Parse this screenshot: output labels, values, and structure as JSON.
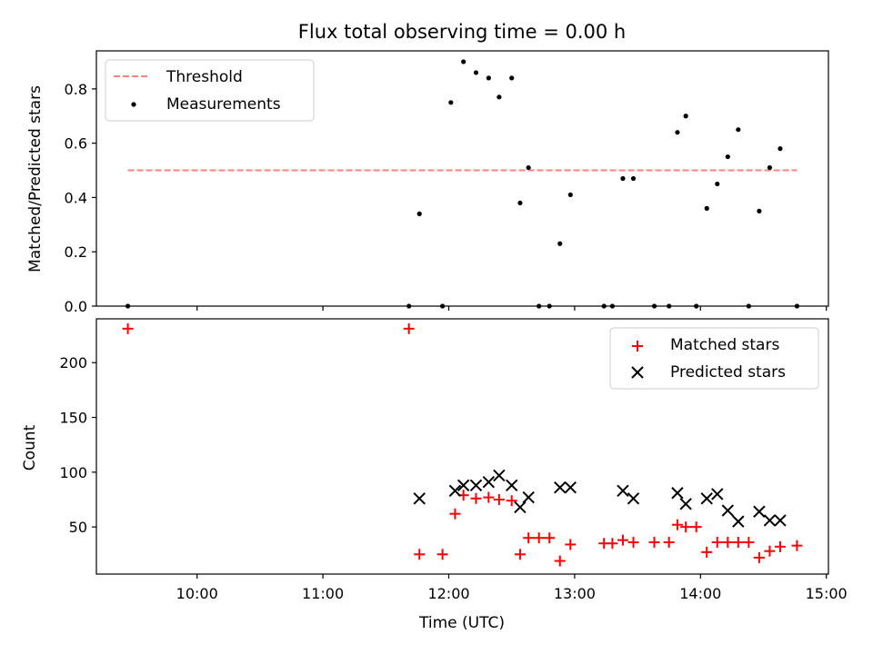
{
  "chart_data": [
    {
      "type": "scatter",
      "title": "Flux total observing time = 0.00 h",
      "xlabel": "",
      "ylabel": "Matched/Predicted stars",
      "xlim": [
        "09:12",
        "15:01"
      ],
      "ylim": [
        0,
        0.94
      ],
      "yticks": [
        "0.0",
        "0.2",
        "0.4",
        "0.6",
        "0.8"
      ],
      "ytick_values": [
        0,
        0.2,
        0.4,
        0.6,
        0.8
      ],
      "threshold": {
        "label": "Threshold",
        "value": 0.5,
        "x_start": "09:27",
        "x_end": "14:46",
        "color": "#ff8080"
      },
      "legend": {
        "placement": "top-left",
        "entries": [
          "Threshold",
          "Measurements"
        ]
      },
      "series": [
        {
          "name": "Measurements",
          "color": "#000000",
          "marker": "dot",
          "points": [
            [
              "09:27",
              0.0
            ],
            [
              "11:41",
              0.0
            ],
            [
              "11:46",
              0.34
            ],
            [
              "11:57",
              0.0
            ],
            [
              "12:01",
              0.75
            ],
            [
              "12:07",
              0.9
            ],
            [
              "12:13",
              0.86
            ],
            [
              "12:19",
              0.84
            ],
            [
              "12:24",
              0.77
            ],
            [
              "12:30",
              0.84
            ],
            [
              "12:34",
              0.38
            ],
            [
              "12:38",
              0.51
            ],
            [
              "12:43",
              0.0
            ],
            [
              "12:48",
              0.0
            ],
            [
              "12:53",
              0.23
            ],
            [
              "12:58",
              0.41
            ],
            [
              "13:14",
              0.0
            ],
            [
              "13:18",
              0.0
            ],
            [
              "13:23",
              0.47
            ],
            [
              "13:28",
              0.47
            ],
            [
              "13:38",
              0.0
            ],
            [
              "13:45",
              0.0
            ],
            [
              "13:49",
              0.64
            ],
            [
              "13:53",
              0.7
            ],
            [
              "13:58",
              0.0
            ],
            [
              "14:03",
              0.36
            ],
            [
              "14:08",
              0.45
            ],
            [
              "14:13",
              0.55
            ],
            [
              "14:18",
              0.65
            ],
            [
              "14:23",
              0.0
            ],
            [
              "14:28",
              0.35
            ],
            [
              "14:33",
              0.51
            ],
            [
              "14:38",
              0.58
            ],
            [
              "14:46",
              0.0
            ]
          ]
        }
      ]
    },
    {
      "type": "scatter",
      "title": "",
      "xlabel": "Time (UTC)",
      "ylabel": "Count",
      "xlim": [
        "09:12",
        "15:01"
      ],
      "ylim": [
        7,
        240
      ],
      "xticks": [
        "10:00",
        "11:00",
        "12:00",
        "13:00",
        "14:00",
        "15:00"
      ],
      "yticks": [
        "50",
        "100",
        "150",
        "200"
      ],
      "ytick_values": [
        50,
        100,
        150,
        200
      ],
      "legend": {
        "placement": "top-right",
        "entries": [
          "Matched stars",
          "Predicted stars"
        ]
      },
      "series": [
        {
          "name": "Matched stars",
          "color": "#ff0000",
          "marker": "plus",
          "points": [
            [
              "09:27",
              231
            ],
            [
              "11:41",
              231
            ],
            [
              "11:46",
              25
            ],
            [
              "11:57",
              25
            ],
            [
              "12:03",
              62
            ],
            [
              "12:07",
              79
            ],
            [
              "12:13",
              76
            ],
            [
              "12:19",
              77
            ],
            [
              "12:24",
              75
            ],
            [
              "12:30",
              74
            ],
            [
              "12:34",
              25
            ],
            [
              "12:38",
              40
            ],
            [
              "12:43",
              40
            ],
            [
              "12:48",
              40
            ],
            [
              "12:53",
              19
            ],
            [
              "12:58",
              34
            ],
            [
              "13:14",
              35
            ],
            [
              "13:18",
              35
            ],
            [
              "13:23",
              38
            ],
            [
              "13:28",
              36
            ],
            [
              "13:38",
              36
            ],
            [
              "13:45",
              36
            ],
            [
              "13:49",
              52
            ],
            [
              "13:53",
              50
            ],
            [
              "13:58",
              50
            ],
            [
              "14:03",
              27
            ],
            [
              "14:08",
              36
            ],
            [
              "14:13",
              36
            ],
            [
              "14:18",
              36
            ],
            [
              "14:23",
              36
            ],
            [
              "14:28",
              22
            ],
            [
              "14:33",
              28
            ],
            [
              "14:38",
              32
            ],
            [
              "14:46",
              33
            ]
          ]
        },
        {
          "name": "Predicted stars",
          "color": "#000000",
          "marker": "x",
          "points": [
            [
              "11:46",
              76
            ],
            [
              "12:03",
              83
            ],
            [
              "12:07",
              88
            ],
            [
              "12:13",
              88
            ],
            [
              "12:19",
              91
            ],
            [
              "12:24",
              97
            ],
            [
              "12:30",
              88
            ],
            [
              "12:34",
              68
            ],
            [
              "12:38",
              77
            ],
            [
              "12:53",
              86
            ],
            [
              "12:58",
              86
            ],
            [
              "13:23",
              83
            ],
            [
              "13:28",
              76
            ],
            [
              "13:49",
              81
            ],
            [
              "13:53",
              71
            ],
            [
              "14:03",
              76
            ],
            [
              "14:08",
              80
            ],
            [
              "14:13",
              65
            ],
            [
              "14:18",
              55
            ],
            [
              "14:28",
              64
            ],
            [
              "14:33",
              56
            ],
            [
              "14:38",
              56
            ]
          ]
        }
      ]
    }
  ]
}
